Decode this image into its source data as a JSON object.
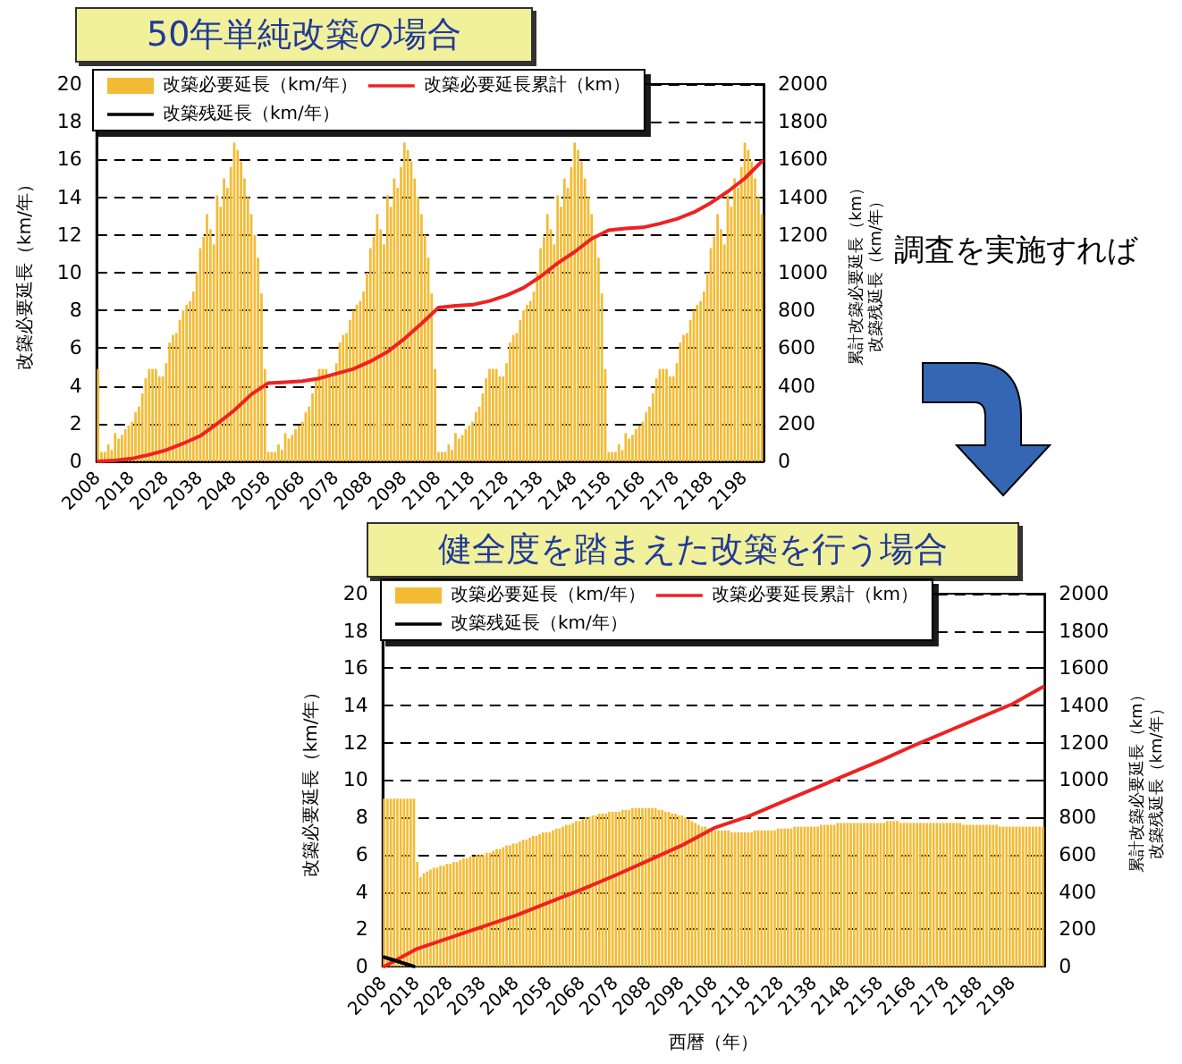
{
  "chart_data": [
    {
      "type": "bar",
      "title": "50年単純改築の場合",
      "ylabel": "改築必要延長（km/年）",
      "y2label": "累計改築必要延長（km）改築残延長（km/年）",
      "annotations": [
        "調査を実施すれば"
      ],
      "x": [
        2008,
        2009,
        2010,
        2011,
        2012,
        2013,
        2014,
        2015,
        2016,
        2017,
        2018,
        2019,
        2020,
        2021,
        2022,
        2023,
        2024,
        2025,
        2026,
        2027,
        2028,
        2029,
        2030,
        2031,
        2032,
        2033,
        2034,
        2035,
        2036,
        2037,
        2038,
        2039,
        2040,
        2041,
        2042,
        2043,
        2044,
        2045,
        2046,
        2047,
        2048,
        2049,
        2050,
        2051,
        2052,
        2053,
        2054,
        2055,
        2056,
        2057,
        2058,
        2059,
        2060,
        2061,
        2062,
        2063,
        2064,
        2065,
        2066,
        2067,
        2068,
        2069,
        2070,
        2071,
        2072,
        2073,
        2074,
        2075,
        2076,
        2077,
        2078,
        2079,
        2080,
        2081,
        2082,
        2083,
        2084,
        2085,
        2086,
        2087,
        2088,
        2089,
        2090,
        2091,
        2092,
        2093,
        2094,
        2095,
        2096,
        2097,
        2098,
        2099,
        2100,
        2101,
        2102,
        2103,
        2104,
        2105,
        2106,
        2107,
        2108,
        2109,
        2110,
        2111,
        2112,
        2113,
        2114,
        2115,
        2116,
        2117,
        2118,
        2119,
        2120,
        2121,
        2122,
        2123,
        2124,
        2125,
        2126,
        2127,
        2128,
        2129,
        2130,
        2131,
        2132,
        2133,
        2134,
        2135,
        2136,
        2137,
        2138,
        2139,
        2140,
        2141,
        2142,
        2143,
        2144,
        2145,
        2146,
        2147,
        2148,
        2149,
        2150,
        2151,
        2152,
        2153,
        2154,
        2155,
        2156,
        2157,
        2158,
        2159,
        2160,
        2161,
        2162,
        2163,
        2164,
        2165,
        2166,
        2167,
        2168,
        2169,
        2170,
        2171,
        2172,
        2173,
        2174,
        2175,
        2176,
        2177,
        2178,
        2179,
        2180,
        2181,
        2182,
        2183,
        2184,
        2185,
        2186,
        2187,
        2188,
        2189,
        2190,
        2191,
        2192,
        2193,
        2194,
        2195,
        2196,
        2197,
        2198,
        2199,
        2200,
        2201,
        2202,
        2203
      ],
      "series": [
        {
          "name": "改築必要延長（km/年）",
          "color": "#f3bb35",
          "values": [
            4.9,
            0.5,
            0.5,
            0.9,
            0.6,
            1.5,
            1.2,
            1.4,
            1.7,
            1.9,
            2.1,
            2.6,
            2.9,
            3.6,
            4.4,
            4.9,
            4.9,
            4.9,
            4.5,
            4.5,
            5.2,
            6.3,
            6.7,
            6.8,
            7.5,
            8.0,
            8.3,
            8.5,
            9.0,
            10.0,
            11.3,
            11.9,
            13.1,
            12.3,
            11.5,
            14.1,
            13.5,
            15.0,
            14.5,
            15.6,
            16.9,
            16.5,
            15.9,
            15.0,
            14.0,
            13.1,
            12.0,
            10.8,
            8.9,
            4.9,
            0.5,
            0.5,
            0.5,
            0.9,
            0.6,
            1.5,
            1.2,
            1.4,
            1.7,
            1.9,
            2.1,
            2.6,
            2.9,
            3.6,
            4.4,
            4.9,
            4.9,
            4.9,
            4.5,
            4.5,
            5.2,
            6.3,
            6.7,
            6.8,
            7.5,
            8.0,
            8.3,
            8.5,
            9.0,
            10.0,
            11.3,
            11.9,
            13.1,
            12.3,
            11.5,
            14.1,
            13.5,
            15.0,
            14.5,
            15.6,
            16.9,
            16.5,
            15.9,
            15.0,
            14.0,
            13.1,
            12.0,
            10.8,
            8.9,
            4.9,
            0.5,
            0.5,
            0.5,
            0.9,
            0.6,
            1.5,
            1.2,
            1.4,
            1.7,
            1.9,
            2.1,
            2.6,
            2.9,
            3.6,
            4.4,
            4.9,
            4.9,
            4.9,
            4.5,
            4.5,
            5.2,
            6.3,
            6.7,
            6.8,
            7.5,
            8.0,
            8.3,
            8.5,
            9.0,
            10.0,
            11.3,
            11.9,
            13.1,
            12.3,
            11.5,
            14.1,
            13.5,
            15.0,
            14.5,
            15.6,
            16.9,
            16.5,
            15.9,
            15.0,
            14.0,
            13.1,
            12.0,
            10.8,
            8.9,
            4.9,
            0.5,
            0.5,
            0.5,
            0.9,
            0.6,
            1.5,
            1.2,
            1.4,
            1.7,
            1.9,
            2.1,
            2.6,
            2.9,
            3.6,
            4.4,
            4.9,
            4.9,
            4.9,
            4.5,
            4.5,
            5.2,
            6.3,
            6.7,
            6.8,
            7.5,
            8.0,
            8.3,
            8.5,
            9.0,
            10.0,
            11.3,
            11.9,
            13.1,
            12.3,
            11.5,
            14.1,
            13.5,
            15.0,
            14.5,
            15.6,
            16.9,
            16.5,
            15.9,
            15.0,
            14.0,
            13.1
          ]
        },
        {
          "name": "改築必要延長累計（km）",
          "type": "line",
          "axis": "y2",
          "color": "#ee2222",
          "x": [
            2008,
            2013,
            2018,
            2023,
            2028,
            2033,
            2038,
            2043,
            2048,
            2053,
            2058,
            2063,
            2068,
            2073,
            2078,
            2083,
            2088,
            2093,
            2098,
            2103,
            2108,
            2113,
            2118,
            2123,
            2128,
            2133,
            2138,
            2143,
            2148,
            2153,
            2158,
            2163,
            2168,
            2173,
            2178,
            2183,
            2188,
            2193,
            2198,
            2203
          ],
          "values": [
            0,
            5,
            15,
            35,
            60,
            95,
            135,
            200,
            270,
            355,
            415,
            420,
            425,
            440,
            465,
            490,
            530,
            580,
            650,
            730,
            815,
            825,
            830,
            850,
            880,
            920,
            980,
            1050,
            1110,
            1180,
            1225,
            1235,
            1240,
            1260,
            1285,
            1320,
            1370,
            1430,
            1500,
            1590
          ]
        },
        {
          "name": "改築残延長（km/年）",
          "type": "line",
          "color": "#000000",
          "values": [
            null,
            null,
            null,
            null,
            null,
            null,
            null,
            null,
            null,
            null,
            null,
            null,
            null,
            null,
            null,
            null,
            null,
            null,
            null,
            null,
            null,
            null,
            null,
            null,
            null,
            null,
            null,
            null,
            null,
            null,
            null,
            null,
            null,
            null,
            null,
            null,
            null,
            null,
            null,
            null,
            null,
            null,
            null,
            null,
            null,
            null,
            null,
            null,
            null,
            null,
            null,
            null,
            null,
            null,
            null,
            null,
            null,
            null,
            null,
            null,
            null,
            null,
            null,
            null,
            null,
            null,
            null,
            null,
            null,
            null,
            null,
            null,
            null,
            null,
            null,
            null,
            null,
            null,
            null,
            null,
            null,
            null,
            null,
            null,
            null,
            null,
            null,
            null,
            null,
            null,
            null,
            null,
            null,
            null,
            null,
            null,
            null,
            null,
            null,
            null,
            null,
            null,
            null,
            null,
            null,
            null,
            null,
            null,
            null,
            null,
            null,
            null,
            null,
            null,
            null,
            null,
            null,
            null,
            null,
            null,
            null,
            null,
            null,
            null,
            null,
            null,
            null,
            null,
            null,
            null,
            null,
            null,
            null,
            null,
            null,
            null,
            null,
            null,
            null,
            null,
            null,
            null,
            null,
            null,
            null,
            null,
            null,
            null,
            null,
            null,
            null,
            null,
            null,
            null,
            null,
            null,
            null,
            null,
            null,
            null,
            null,
            null,
            null,
            null,
            null,
            null,
            null,
            null,
            null,
            null,
            null,
            null,
            null,
            null,
            null,
            null,
            null,
            null,
            null,
            null,
            null,
            null,
            null,
            null,
            null,
            null,
            null,
            null,
            null,
            null,
            null,
            null,
            null,
            null,
            null,
            null
          ]
        }
      ],
      "xlim": [
        2007.5,
        2203.5
      ],
      "xticks": [
        2008,
        2018,
        2028,
        2038,
        2048,
        2058,
        2068,
        2078,
        2088,
        2098,
        2108,
        2118,
        2128,
        2138,
        2148,
        2158,
        2168,
        2178,
        2188,
        2198
      ],
      "ylim": [
        0,
        20
      ],
      "yticks": [
        0,
        2,
        4,
        6,
        8,
        10,
        12,
        14,
        16,
        18,
        20
      ],
      "y2lim": [
        0,
        2000
      ],
      "y2ticks": [
        0,
        200,
        400,
        600,
        800,
        1000,
        1200,
        1400,
        1600,
        1800,
        2000
      ],
      "grid": "y",
      "legend": "top left"
    },
    {
      "type": "bar",
      "title": "健全度を踏まえた改築を行う場合",
      "xlabel": "西暦（年）",
      "ylabel": "改築必要延長（km/年）",
      "y2label": "累計改築必要延長（km）改築残延長（km/年）",
      "x": [
        2008,
        2009,
        2010,
        2011,
        2012,
        2013,
        2014,
        2015,
        2016,
        2017,
        2018,
        2019,
        2020,
        2021,
        2022,
        2023,
        2024,
        2025,
        2026,
        2027,
        2028,
        2029,
        2030,
        2031,
        2032,
        2033,
        2034,
        2035,
        2036,
        2037,
        2038,
        2039,
        2040,
        2041,
        2042,
        2043,
        2044,
        2045,
        2046,
        2047,
        2048,
        2049,
        2050,
        2051,
        2052,
        2053,
        2054,
        2055,
        2056,
        2057,
        2058,
        2059,
        2060,
        2061,
        2062,
        2063,
        2064,
        2065,
        2066,
        2067,
        2068,
        2069,
        2070,
        2071,
        2072,
        2073,
        2074,
        2075,
        2076,
        2077,
        2078,
        2079,
        2080,
        2081,
        2082,
        2083,
        2084,
        2085,
        2086,
        2087,
        2088,
        2089,
        2090,
        2091,
        2092,
        2093,
        2094,
        2095,
        2096,
        2097,
        2098,
        2099,
        2100,
        2101,
        2102,
        2103,
        2104,
        2105,
        2106,
        2107,
        2108,
        2109,
        2110,
        2111,
        2112,
        2113,
        2114,
        2115,
        2116,
        2117,
        2118,
        2119,
        2120,
        2121,
        2122,
        2123,
        2124,
        2125,
        2126,
        2127,
        2128,
        2129,
        2130,
        2131,
        2132,
        2133,
        2134,
        2135,
        2136,
        2137,
        2138,
        2139,
        2140,
        2141,
        2142,
        2143,
        2144,
        2145,
        2146,
        2147,
        2148,
        2149,
        2150,
        2151,
        2152,
        2153,
        2154,
        2155,
        2156,
        2157,
        2158,
        2159,
        2160,
        2161,
        2162,
        2163,
        2164,
        2165,
        2166,
        2167,
        2168,
        2169,
        2170,
        2171,
        2172,
        2173,
        2174,
        2175,
        2176,
        2177,
        2178,
        2179,
        2180,
        2181,
        2182,
        2183,
        2184,
        2185,
        2186,
        2187,
        2188,
        2189,
        2190,
        2191,
        2192,
        2193,
        2194,
        2195,
        2196,
        2197,
        2198,
        2199,
        2200,
        2201,
        2202,
        2203,
        2204,
        2205,
        2206,
        2207
      ],
      "series": [
        {
          "name": "改築必要延長（km/年）",
          "color": "#f3bb35",
          "values": [
            9.0,
            9.0,
            9.0,
            9.0,
            9.0,
            9.0,
            9.0,
            9.0,
            9.0,
            9.0,
            5.6,
            4.8,
            5.0,
            5.1,
            5.2,
            5.3,
            5.3,
            5.4,
            5.4,
            5.5,
            5.5,
            5.6,
            5.6,
            5.7,
            5.8,
            5.8,
            5.9,
            5.9,
            6.0,
            6.0,
            6.0,
            6.1,
            6.1,
            6.2,
            6.3,
            6.3,
            6.4,
            6.5,
            6.5,
            6.6,
            6.6,
            6.7,
            6.8,
            6.8,
            6.9,
            7.0,
            7.0,
            7.1,
            7.2,
            7.2,
            7.2,
            7.3,
            7.4,
            7.4,
            7.5,
            7.6,
            7.6,
            7.7,
            7.8,
            7.8,
            7.9,
            8.0,
            8.0,
            8.1,
            8.1,
            8.2,
            8.2,
            8.2,
            8.3,
            8.3,
            8.3,
            8.3,
            8.4,
            8.4,
            8.4,
            8.5,
            8.5,
            8.5,
            8.5,
            8.5,
            8.5,
            8.5,
            8.5,
            8.4,
            8.4,
            8.3,
            8.3,
            8.2,
            8.2,
            8.1,
            8.1,
            8.0,
            7.9,
            7.8,
            7.7,
            7.6,
            7.5,
            7.5,
            7.4,
            7.4,
            7.3,
            7.3,
            7.3,
            7.3,
            7.3,
            7.2,
            7.2,
            7.2,
            7.2,
            7.2,
            7.2,
            7.2,
            7.3,
            7.3,
            7.3,
            7.3,
            7.3,
            7.3,
            7.3,
            7.4,
            7.4,
            7.4,
            7.4,
            7.4,
            7.5,
            7.5,
            7.5,
            7.5,
            7.5,
            7.5,
            7.5,
            7.5,
            7.6,
            7.6,
            7.6,
            7.6,
            7.6,
            7.7,
            7.7,
            7.7,
            7.7,
            7.7,
            7.7,
            7.7,
            7.7,
            7.7,
            7.7,
            7.7,
            7.7,
            7.7,
            7.7,
            7.7,
            7.8,
            7.8,
            7.8,
            7.8,
            7.7,
            7.7,
            7.7,
            7.7,
            7.7,
            7.7,
            7.7,
            7.7,
            7.7,
            7.7,
            7.7,
            7.7,
            7.7,
            7.7,
            7.7,
            7.7,
            7.7,
            7.7,
            7.7,
            7.6,
            7.6,
            7.6,
            7.6,
            7.6,
            7.6,
            7.6,
            7.6,
            7.6,
            7.6,
            7.6,
            7.5,
            7.5,
            7.5,
            7.5,
            7.5,
            7.5,
            7.5,
            7.5,
            7.5,
            7.5,
            7.5,
            7.5,
            7.5,
            7.5
          ]
        },
        {
          "name": "改築必要延長累計（km）",
          "type": "line",
          "axis": "y2",
          "color": "#ee2222",
          "x": [
            2008,
            2018,
            2028,
            2038,
            2048,
            2058,
            2068,
            2078,
            2088,
            2098,
            2108,
            2118,
            2128,
            2138,
            2148,
            2158,
            2168,
            2178,
            2188,
            2198,
            2207
          ],
          "values": [
            0,
            95,
            155,
            215,
            275,
            345,
            415,
            490,
            570,
            650,
            745,
            805,
            880,
            955,
            1030,
            1105,
            1185,
            1260,
            1335,
            1410,
            1500
          ]
        },
        {
          "name": "改築残延長（km/年）",
          "type": "line",
          "color": "#000000",
          "x": [
            2008,
            2017
          ],
          "values": [
            0.5,
            0
          ]
        }
      ],
      "xlim": [
        2007.5,
        2207.5
      ],
      "xticks": [
        2008,
        2018,
        2028,
        2038,
        2048,
        2058,
        2068,
        2078,
        2088,
        2098,
        2108,
        2118,
        2128,
        2138,
        2148,
        2158,
        2168,
        2178,
        2188,
        2198
      ],
      "ylim": [
        0,
        20
      ],
      "yticks": [
        0,
        2,
        4,
        6,
        8,
        10,
        12,
        14,
        16,
        18,
        20
      ],
      "y2lim": [
        0,
        2000
      ],
      "y2ticks": [
        0,
        200,
        400,
        600,
        800,
        1000,
        1200,
        1400,
        1600,
        1800,
        2000
      ],
      "grid": "y",
      "legend": "top left"
    }
  ]
}
